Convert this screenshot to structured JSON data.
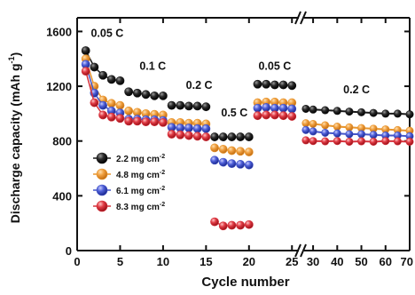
{
  "chart_data": {
    "type": "scatter",
    "xlabel": "Cycle number",
    "ylabel": "Discharge capacity (mAh g",
    "ylabel_sup": "-1",
    "ylabel_close": ")",
    "ylim": [
      0,
      1700
    ],
    "yticks": [
      0,
      400,
      800,
      1200,
      1600
    ],
    "xlim_left": [
      0,
      25.8
    ],
    "xlim_right": [
      26.3,
      70
    ],
    "xticks_left": [
      0,
      5,
      10,
      15,
      20,
      25
    ],
    "xticks_right": [
      30,
      40,
      50,
      60,
      70
    ],
    "xtick_label_70": "70",
    "axis_break": true,
    "grid": false,
    "legend_position": "lower-left",
    "rate_labels": [
      {
        "text": "0.05 C",
        "x": 3.5,
        "y": 1560
      },
      {
        "text": "0.1 C",
        "x": 8.8,
        "y": 1320
      },
      {
        "text": "0.2 C",
        "x": 14.2,
        "y": 1180
      },
      {
        "text": "0.5 C",
        "x": 18.3,
        "y": 980
      },
      {
        "text": "0.05 C",
        "x": 23.0,
        "y": 1320
      },
      {
        "text": "0.2 C",
        "x": 48.0,
        "y": 1150
      }
    ],
    "colors": {
      "black": "#1a1a1a",
      "orange": "#e8962e",
      "blue": "#4556c8",
      "red": "#d6323c"
    },
    "series": [
      {
        "name": "2.2 mg cm",
        "sup": "-2",
        "color_key": "black",
        "left": [
          [
            1,
            1460
          ],
          [
            2,
            1340
          ],
          [
            3,
            1280
          ],
          [
            4,
            1250
          ],
          [
            5,
            1240
          ],
          [
            6,
            1160
          ],
          [
            7,
            1150
          ],
          [
            8,
            1140
          ],
          [
            9,
            1130
          ],
          [
            10,
            1130
          ],
          [
            11,
            1060
          ],
          [
            12,
            1060
          ],
          [
            13,
            1055
          ],
          [
            14,
            1055
          ],
          [
            15,
            1050
          ],
          [
            16,
            830
          ],
          [
            17,
            830
          ],
          [
            18,
            830
          ],
          [
            19,
            830
          ],
          [
            20,
            830
          ],
          [
            21,
            1215
          ],
          [
            22,
            1215
          ],
          [
            23,
            1210
          ],
          [
            24,
            1210
          ],
          [
            25,
            1205
          ]
        ],
        "right": [
          [
            27,
            1035
          ],
          [
            30,
            1030
          ],
          [
            35,
            1025
          ],
          [
            40,
            1020
          ],
          [
            45,
            1015
          ],
          [
            50,
            1010
          ],
          [
            55,
            1005
          ],
          [
            60,
            1000
          ],
          [
            65,
            1000
          ],
          [
            70,
            995
          ]
        ]
      },
      {
        "name": "4.8 mg cm",
        "sup": "-2",
        "color_key": "orange",
        "left": [
          [
            1,
            1400
          ],
          [
            2,
            1200
          ],
          [
            3,
            1100
          ],
          [
            4,
            1075
          ],
          [
            5,
            1060
          ],
          [
            6,
            1020
          ],
          [
            7,
            1010
          ],
          [
            8,
            1000
          ],
          [
            9,
            995
          ],
          [
            10,
            990
          ],
          [
            11,
            935
          ],
          [
            12,
            935
          ],
          [
            13,
            930
          ],
          [
            14,
            930
          ],
          [
            15,
            925
          ],
          [
            16,
            750
          ],
          [
            17,
            740
          ],
          [
            18,
            730
          ],
          [
            19,
            725
          ],
          [
            20,
            720
          ],
          [
            21,
            1080
          ],
          [
            22,
            1085
          ],
          [
            23,
            1085
          ],
          [
            24,
            1080
          ],
          [
            25,
            1080
          ]
        ],
        "right": [
          [
            27,
            930
          ],
          [
            30,
            925
          ],
          [
            35,
            915
          ],
          [
            40,
            905
          ],
          [
            45,
            900
          ],
          [
            50,
            895
          ],
          [
            55,
            890
          ],
          [
            60,
            885
          ],
          [
            65,
            880
          ],
          [
            70,
            875
          ]
        ]
      },
      {
        "name": "6.1 mg cm",
        "sup": "-2",
        "color_key": "blue",
        "left": [
          [
            1,
            1360
          ],
          [
            2,
            1150
          ],
          [
            3,
            1060
          ],
          [
            4,
            1020
          ],
          [
            5,
            1005
          ],
          [
            6,
            960
          ],
          [
            7,
            960
          ],
          [
            8,
            955
          ],
          [
            9,
            955
          ],
          [
            10,
            950
          ],
          [
            11,
            900
          ],
          [
            12,
            895
          ],
          [
            13,
            895
          ],
          [
            14,
            890
          ],
          [
            15,
            890
          ],
          [
            16,
            660
          ],
          [
            17,
            645
          ],
          [
            18,
            635
          ],
          [
            19,
            630
          ],
          [
            20,
            625
          ],
          [
            21,
            1040
          ],
          [
            22,
            1045
          ],
          [
            23,
            1040
          ],
          [
            24,
            1040
          ],
          [
            25,
            1035
          ]
        ],
        "right": [
          [
            27,
            880
          ],
          [
            30,
            870
          ],
          [
            35,
            860
          ],
          [
            40,
            855
          ],
          [
            45,
            850
          ],
          [
            50,
            850
          ],
          [
            55,
            845
          ],
          [
            60,
            840
          ],
          [
            65,
            840
          ],
          [
            70,
            835
          ]
        ]
      },
      {
        "name": "8.3 mg cm",
        "sup": "-2",
        "color_key": "red",
        "left": [
          [
            1,
            1310
          ],
          [
            2,
            1080
          ],
          [
            3,
            990
          ],
          [
            4,
            975
          ],
          [
            5,
            965
          ],
          [
            6,
            945
          ],
          [
            7,
            945
          ],
          [
            8,
            940
          ],
          [
            9,
            940
          ],
          [
            10,
            935
          ],
          [
            11,
            850
          ],
          [
            12,
            845
          ],
          [
            13,
            840
          ],
          [
            14,
            835
          ],
          [
            15,
            830
          ],
          [
            16,
            210
          ],
          [
            17,
            180
          ],
          [
            18,
            185
          ],
          [
            19,
            185
          ],
          [
            20,
            190
          ],
          [
            21,
            985
          ],
          [
            22,
            990
          ],
          [
            23,
            990
          ],
          [
            24,
            985
          ],
          [
            25,
            980
          ]
        ],
        "right": [
          [
            27,
            805
          ],
          [
            30,
            800
          ],
          [
            35,
            798
          ],
          [
            40,
            800
          ],
          [
            45,
            795
          ],
          [
            50,
            798
          ],
          [
            55,
            795
          ],
          [
            60,
            800
          ],
          [
            65,
            798
          ],
          [
            70,
            795
          ]
        ]
      }
    ],
    "legend_order": [
      0,
      1,
      2,
      3
    ]
  }
}
